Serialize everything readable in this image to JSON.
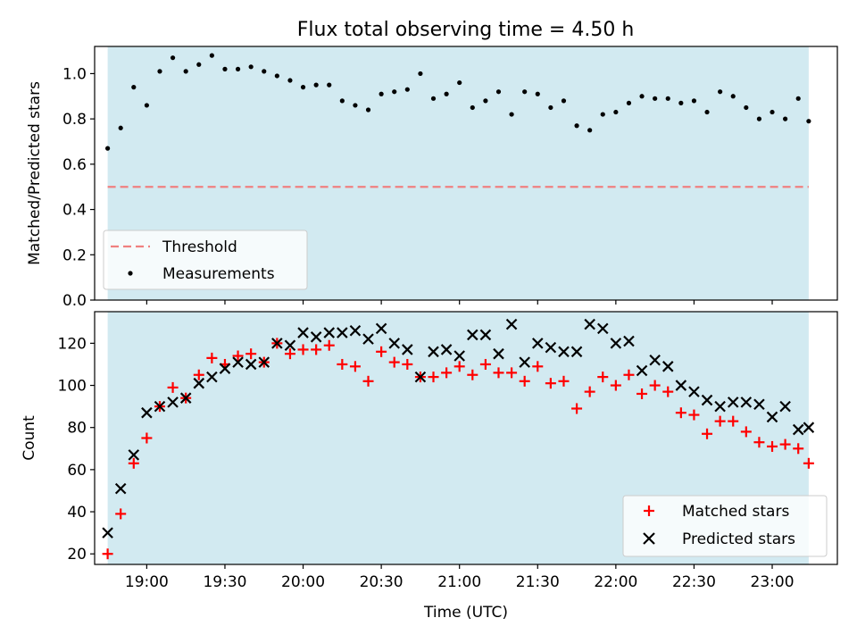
{
  "figure_title": "Flux total observing time = 4.50 h",
  "chart_data": [
    {
      "type": "scatter",
      "title": "Flux total observing time = 4.50 h",
      "xlabel": "",
      "ylabel": "Matched/Predicted stars",
      "xlim": [
        "18:40",
        "23:25"
      ],
      "ylim": [
        0,
        1.12
      ],
      "yticks": [
        "0.0",
        "0.2",
        "0.4",
        "0.6",
        "0.8",
        "1.0"
      ],
      "shaded_span": [
        "18:45",
        "23:14"
      ],
      "colors": {
        "shade": "#add8e6",
        "threshold": "#f08080",
        "points": "#000000"
      },
      "legend_position": "lower-left",
      "threshold": {
        "name": "Threshold",
        "value": 0.5,
        "style": "dashed"
      },
      "series": [
        {
          "name": "Measurements",
          "x": [
            "18:45",
            "18:50",
            "18:55",
            "19:00",
            "19:05",
            "19:10",
            "19:15",
            "19:20",
            "19:25",
            "19:30",
            "19:35",
            "19:40",
            "19:45",
            "19:50",
            "19:55",
            "20:00",
            "20:05",
            "20:10",
            "20:15",
            "20:20",
            "20:25",
            "20:30",
            "20:35",
            "20:40",
            "20:45",
            "20:50",
            "20:55",
            "21:00",
            "21:05",
            "21:10",
            "21:15",
            "21:20",
            "21:25",
            "21:30",
            "21:35",
            "21:40",
            "21:45",
            "21:50",
            "21:55",
            "22:00",
            "22:05",
            "22:10",
            "22:15",
            "22:20",
            "22:25",
            "22:30",
            "22:35",
            "22:40",
            "22:45",
            "22:50",
            "22:55",
            "23:00",
            "23:05",
            "23:10",
            "23:14"
          ],
          "y": [
            0.67,
            0.76,
            0.94,
            0.86,
            1.01,
            1.07,
            1.01,
            1.04,
            1.08,
            1.02,
            1.02,
            1.03,
            1.01,
            0.99,
            0.97,
            0.94,
            0.95,
            0.95,
            0.88,
            0.86,
            0.84,
            0.91,
            0.92,
            0.93,
            1.0,
            0.89,
            0.91,
            0.96,
            0.85,
            0.88,
            0.92,
            0.82,
            0.92,
            0.91,
            0.85,
            0.88,
            0.77,
            0.75,
            0.82,
            0.83,
            0.87,
            0.9,
            0.89,
            0.89,
            0.87,
            0.88,
            0.83,
            0.92,
            0.9,
            0.85,
            0.8,
            0.83,
            0.8,
            0.89,
            0.79
          ]
        }
      ]
    },
    {
      "type": "scatter",
      "xlabel": "Time (UTC)",
      "ylabel": "Count",
      "xlim": [
        "18:40",
        "23:25"
      ],
      "ylim": [
        15,
        135
      ],
      "xticks": [
        "19:00",
        "19:30",
        "20:00",
        "20:30",
        "21:00",
        "21:30",
        "22:00",
        "22:30",
        "23:00"
      ],
      "yticks": [
        "20",
        "40",
        "60",
        "80",
        "100",
        "120"
      ],
      "shaded_span": [
        "18:45",
        "23:14"
      ],
      "colors": {
        "shade": "#add8e6",
        "matched": "#ff0000",
        "predicted": "#000000"
      },
      "legend_position": "lower-right",
      "series": [
        {
          "name": "Matched stars",
          "marker": "+",
          "x": [
            "18:45",
            "18:50",
            "18:55",
            "19:00",
            "19:05",
            "19:10",
            "19:15",
            "19:20",
            "19:25",
            "19:30",
            "19:35",
            "19:40",
            "19:45",
            "19:50",
            "19:55",
            "20:00",
            "20:05",
            "20:10",
            "20:15",
            "20:20",
            "20:25",
            "20:30",
            "20:35",
            "20:40",
            "20:45",
            "20:50",
            "20:55",
            "21:00",
            "21:05",
            "21:10",
            "21:15",
            "21:20",
            "21:25",
            "21:30",
            "21:35",
            "21:40",
            "21:45",
            "21:50",
            "21:55",
            "22:00",
            "22:05",
            "22:10",
            "22:15",
            "22:20",
            "22:25",
            "22:30",
            "22:35",
            "22:40",
            "22:45",
            "22:50",
            "22:55",
            "23:00",
            "23:05",
            "23:10",
            "23:14"
          ],
          "y": [
            20,
            39,
            63,
            75,
            90,
            99,
            94,
            105,
            113,
            110,
            114,
            115,
            111,
            120,
            115,
            117,
            117,
            119,
            110,
            109,
            102,
            116,
            111,
            110,
            104,
            104,
            106,
            109,
            105,
            110,
            106,
            106,
            102,
            109,
            101,
            102,
            89,
            97,
            104,
            100,
            105,
            96,
            100,
            97,
            87,
            86,
            77,
            83,
            83,
            78,
            73,
            71,
            72,
            70,
            63
          ]
        },
        {
          "name": "Predicted stars",
          "marker": "x",
          "x": [
            "18:45",
            "18:50",
            "18:55",
            "19:00",
            "19:05",
            "19:10",
            "19:15",
            "19:20",
            "19:25",
            "19:30",
            "19:35",
            "19:40",
            "19:45",
            "19:50",
            "19:55",
            "20:00",
            "20:05",
            "20:10",
            "20:15",
            "20:20",
            "20:25",
            "20:30",
            "20:35",
            "20:40",
            "20:45",
            "20:50",
            "20:55",
            "21:00",
            "21:05",
            "21:10",
            "21:15",
            "21:20",
            "21:25",
            "21:30",
            "21:35",
            "21:40",
            "21:45",
            "21:50",
            "21:55",
            "22:00",
            "22:05",
            "22:10",
            "22:15",
            "22:20",
            "22:25",
            "22:30",
            "22:35",
            "22:40",
            "22:45",
            "22:50",
            "22:55",
            "23:00",
            "23:05",
            "23:10",
            "23:14"
          ],
          "y": [
            30,
            51,
            67,
            87,
            90,
            92,
            94,
            101,
            104,
            108,
            111,
            110,
            111,
            120,
            119,
            125,
            123,
            125,
            125,
            126,
            122,
            127,
            120,
            117,
            104,
            116,
            117,
            114,
            124,
            124,
            115,
            129,
            111,
            120,
            118,
            116,
            116,
            129,
            127,
            120,
            121,
            107,
            112,
            109,
            100,
            97,
            93,
            90,
            92,
            92,
            91,
            85,
            90,
            79,
            80
          ]
        }
      ]
    }
  ]
}
